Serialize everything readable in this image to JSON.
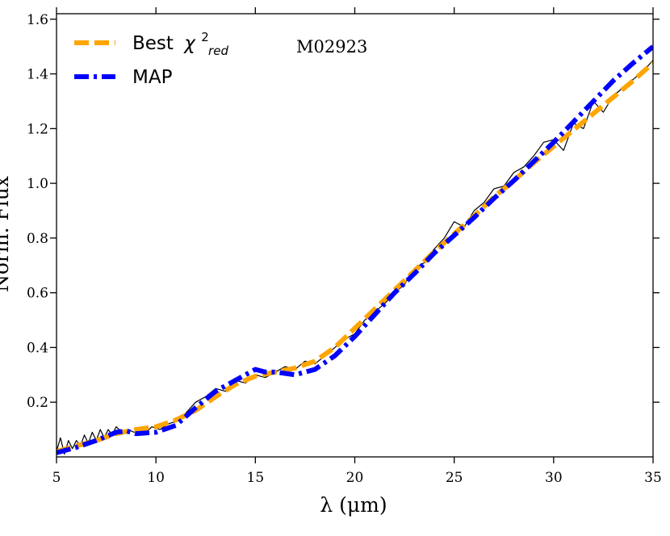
{
  "chart_data": {
    "type": "line",
    "title": "",
    "annotation": "M02923",
    "xlabel": "λ (μm)",
    "ylabel": "Norm. Flux",
    "xlim": [
      5,
      35
    ],
    "ylim": [
      0.0,
      1.62
    ],
    "xticks": [
      5,
      10,
      15,
      20,
      25,
      30,
      35
    ],
    "yticks": [
      0.2,
      0.4,
      0.6,
      0.8,
      1.0,
      1.2,
      1.4,
      1.6
    ],
    "legend_position": "top-left",
    "series": [
      {
        "name": "observed",
        "label": "",
        "color": "#000000",
        "style": "solid-thin",
        "x": [
          5.0,
          5.2,
          5.4,
          5.6,
          5.8,
          6.0,
          6.2,
          6.4,
          6.6,
          6.8,
          7.0,
          7.2,
          7.4,
          7.6,
          7.8,
          8.0,
          8.3,
          8.6,
          8.9,
          9.2,
          9.5,
          9.8,
          10.2,
          10.6,
          11.0,
          11.5,
          12.0,
          12.5,
          13.0,
          13.5,
          14.0,
          14.5,
          15.0,
          15.5,
          16.0,
          16.5,
          17.0,
          17.5,
          18.0,
          18.5,
          19.0,
          19.5,
          20.0,
          20.5,
          21.0,
          21.5,
          22.0,
          22.5,
          23.0,
          23.5,
          24.0,
          24.5,
          25.0,
          25.5,
          26.0,
          26.5,
          27.0,
          27.5,
          28.0,
          28.5,
          29.0,
          29.5,
          30.0,
          30.5,
          31.0,
          31.5,
          32.0,
          32.5,
          33.0,
          33.5,
          34.0,
          34.5,
          35.0
        ],
        "y": [
          0.02,
          0.07,
          0.01,
          0.06,
          0.03,
          0.06,
          0.04,
          0.08,
          0.05,
          0.09,
          0.06,
          0.1,
          0.07,
          0.1,
          0.08,
          0.11,
          0.09,
          0.1,
          0.09,
          0.1,
          0.09,
          0.11,
          0.1,
          0.12,
          0.13,
          0.16,
          0.2,
          0.22,
          0.25,
          0.24,
          0.28,
          0.27,
          0.3,
          0.29,
          0.31,
          0.33,
          0.32,
          0.35,
          0.34,
          0.37,
          0.4,
          0.43,
          0.45,
          0.5,
          0.53,
          0.56,
          0.6,
          0.63,
          0.69,
          0.71,
          0.76,
          0.8,
          0.86,
          0.84,
          0.9,
          0.93,
          0.98,
          0.99,
          1.04,
          1.06,
          1.1,
          1.15,
          1.16,
          1.12,
          1.22,
          1.2,
          1.3,
          1.26,
          1.32,
          1.35,
          1.38,
          1.41,
          1.45
        ]
      },
      {
        "name": "best_chi2",
        "label": "Best",
        "label_math": "χ",
        "label_sup": "2",
        "label_sub": "red",
        "color": "#ffa500",
        "style": "dashed",
        "x": [
          5,
          6,
          7,
          8,
          9,
          10,
          11,
          12,
          13,
          14,
          15,
          16,
          17,
          18,
          19,
          20,
          21,
          22,
          23,
          24,
          25,
          26,
          27,
          28,
          29,
          30,
          31,
          32,
          33,
          34,
          35
        ],
        "y": [
          0.02,
          0.04,
          0.06,
          0.085,
          0.1,
          0.11,
          0.135,
          0.17,
          0.22,
          0.265,
          0.295,
          0.31,
          0.325,
          0.35,
          0.4,
          0.47,
          0.54,
          0.61,
          0.68,
          0.75,
          0.815,
          0.88,
          0.95,
          1.01,
          1.075,
          1.135,
          1.195,
          1.255,
          1.315,
          1.375,
          1.44
        ]
      },
      {
        "name": "map",
        "label": "MAP",
        "color": "#0000ff",
        "style": "dashdot",
        "x": [
          5,
          6,
          7,
          8,
          8.5,
          9,
          10,
          11,
          12,
          13,
          14,
          15,
          15.5,
          16,
          17,
          18,
          19,
          20,
          21,
          22,
          23,
          24,
          25,
          26,
          27,
          28,
          29,
          30,
          31,
          32,
          33,
          34,
          35
        ],
        "y": [
          0.015,
          0.035,
          0.06,
          0.09,
          0.095,
          0.085,
          0.09,
          0.115,
          0.18,
          0.24,
          0.28,
          0.32,
          0.31,
          0.31,
          0.3,
          0.32,
          0.37,
          0.44,
          0.52,
          0.6,
          0.67,
          0.745,
          0.81,
          0.875,
          0.945,
          1.01,
          1.08,
          1.15,
          1.225,
          1.3,
          1.375,
          1.44,
          1.5
        ]
      }
    ]
  }
}
